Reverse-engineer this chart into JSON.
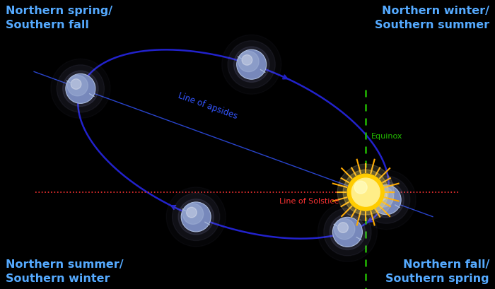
{
  "background_color": "#000000",
  "fig_width": 7.0,
  "fig_height": 4.1,
  "orbit_color": "#2222cc",
  "orbit_linewidth": 1.8,
  "label_color": "#55aaff",
  "label_fontsize": 11.5,
  "solstice_line_color": "#ff3333",
  "equinox_line_color": "#22bb00",
  "apside_line_color": "#3355ff",
  "solstice_label": "Line of Solstice",
  "solstice_label_color": "#ff3333",
  "equinox_label": "Equinox",
  "equinox_label_color": "#22bb00",
  "apside_label": "Line of apsides",
  "apside_label_color": "#3355ff",
  "labels": {
    "top_left": "Northern spring/\nSouthern fall",
    "top_right": "Northern winter/\nSouthern summer",
    "bottom_left": "Northern summer/\nSouthern winter",
    "bottom_right": "Northern fall/\nSouthern spring"
  }
}
